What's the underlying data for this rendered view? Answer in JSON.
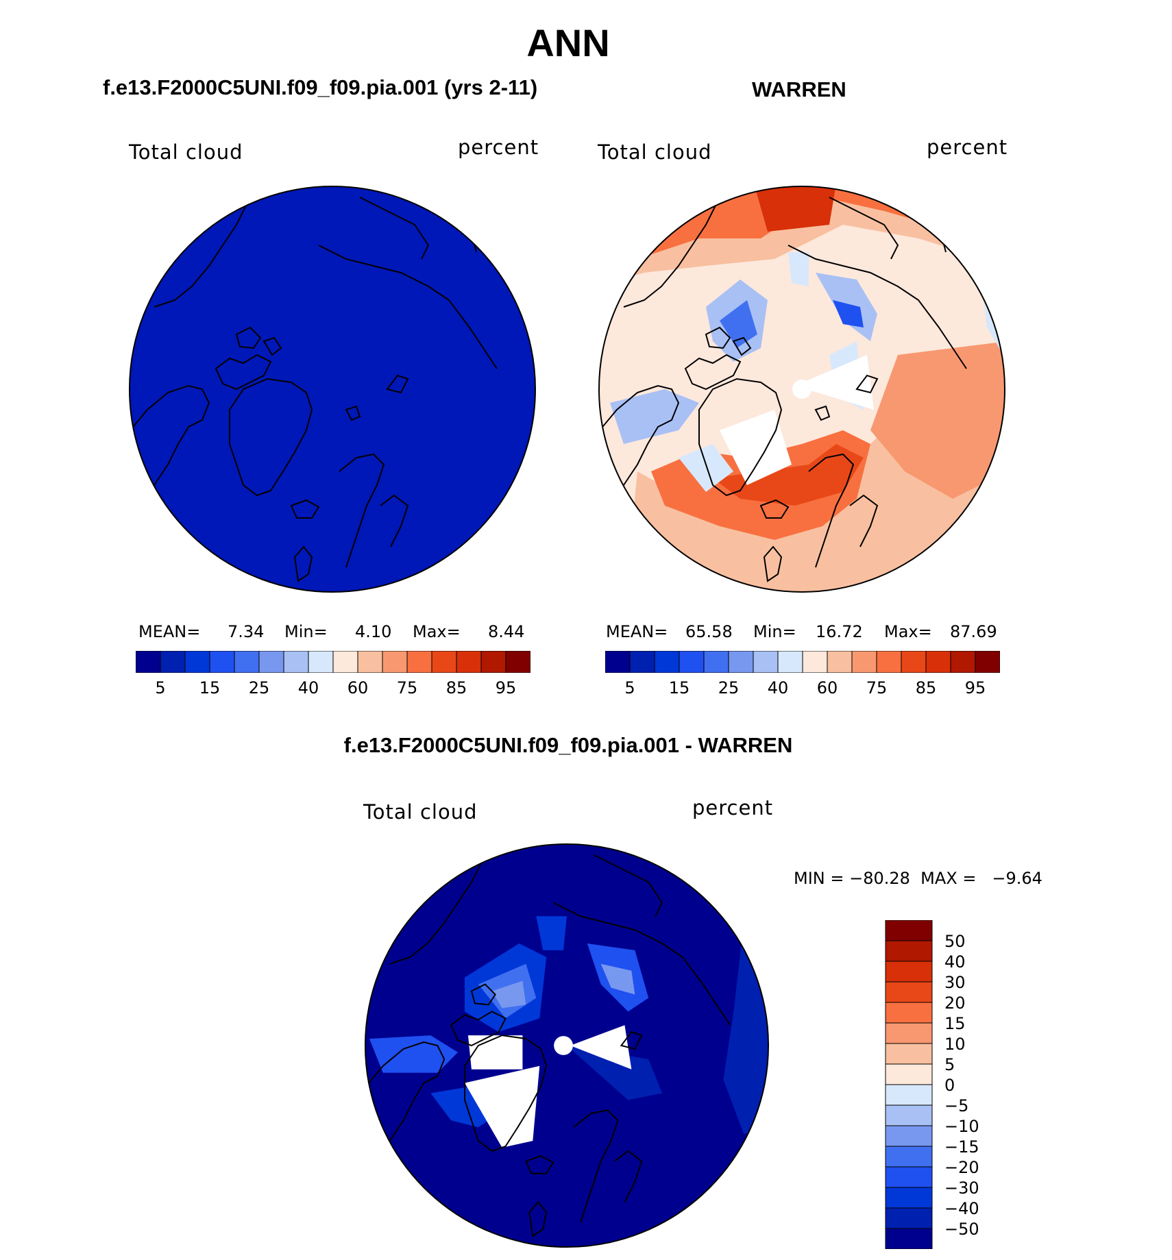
{
  "title": "ANN",
  "panels": [
    {
      "heading": "f.e13.F2000C5UNI.f09_f09.pia.001 (yrs 2-11)",
      "variable_label": "Total cloud",
      "units_label": "percent",
      "stats": {
        "mean_label": "MEAN=",
        "mean": "7.34",
        "min_label": "Min=",
        "min": "4.10",
        "max_label": "Max=",
        "max": "8.44"
      }
    },
    {
      "heading": "WARREN",
      "variable_label": "Total cloud",
      "units_label": "percent",
      "stats": {
        "mean_label": "MEAN=",
        "mean": "65.58",
        "min_label": "Min=",
        "min": "16.72",
        "max_label": "Max=",
        "max": "87.69"
      }
    }
  ],
  "diff_panel": {
    "heading": "f.e13.F2000C5UNI.f09_f09.pia.001 - WARREN",
    "variable_label": "Total cloud",
    "units_label": "percent",
    "stats_text": "MIN = −80.28  MAX =   −9.64"
  },
  "colors": {
    "coast": "#000000",
    "abs_palette": [
      "#00008f",
      "#0020b0",
      "#0038d8",
      "#1f50f0",
      "#4070f0",
      "#7898f0",
      "#a8c0f4",
      "#d8e8fc",
      "#fde8dc",
      "#f8c0a0",
      "#f89870",
      "#f87040",
      "#e84818",
      "#d83008",
      "#b01800",
      "#800000"
    ],
    "diff_palette": [
      "#00008f",
      "#0020b0",
      "#0038d8",
      "#1f50f0",
      "#4070f0",
      "#7898f0",
      "#a8c0f4",
      "#d8e8fc",
      "#fde8dc",
      "#f8c0a0",
      "#f89870",
      "#f87040",
      "#e84818",
      "#d83008",
      "#b01800",
      "#800000"
    ]
  },
  "chart_data": [
    {
      "type": "heatmap",
      "projection": "north polar stereographic",
      "title": "f.e13.F2000C5UNI.f09_f09.pia.001 (yrs 2-11)",
      "field": "Total cloud",
      "units": "percent",
      "mean": 7.34,
      "min": 4.1,
      "max": 8.44,
      "colorbar_levels": [
        5,
        10,
        15,
        20,
        25,
        30,
        40,
        50,
        60,
        70,
        75,
        80,
        85,
        90,
        95
      ],
      "colorbar_labels": [
        "5",
        "15",
        "25",
        "40",
        "60",
        "75",
        "85",
        "95"
      ]
    },
    {
      "type": "heatmap",
      "projection": "north polar stereographic",
      "title": "WARREN",
      "field": "Total cloud",
      "units": "percent",
      "mean": 65.58,
      "min": 16.72,
      "max": 87.69,
      "colorbar_levels": [
        5,
        10,
        15,
        20,
        25,
        30,
        40,
        50,
        60,
        70,
        75,
        80,
        85,
        90,
        95
      ],
      "colorbar_labels": [
        "5",
        "15",
        "25",
        "40",
        "60",
        "75",
        "85",
        "95"
      ]
    },
    {
      "type": "heatmap",
      "projection": "north polar stereographic",
      "title": "f.e13.F2000C5UNI.f09_f09.pia.001 - WARREN",
      "field": "Total cloud",
      "units": "percent",
      "min": -80.28,
      "max": -9.64,
      "colorbar_levels": [
        -50,
        -40,
        -30,
        -20,
        -15,
        -10,
        -5,
        0,
        5,
        10,
        15,
        20,
        30,
        40,
        50
      ],
      "colorbar_labels": [
        "50",
        "40",
        "30",
        "20",
        "15",
        "10",
        "5",
        "0",
        "−5",
        "−10",
        "−15",
        "−20",
        "−30",
        "−40",
        "−50"
      ]
    }
  ]
}
